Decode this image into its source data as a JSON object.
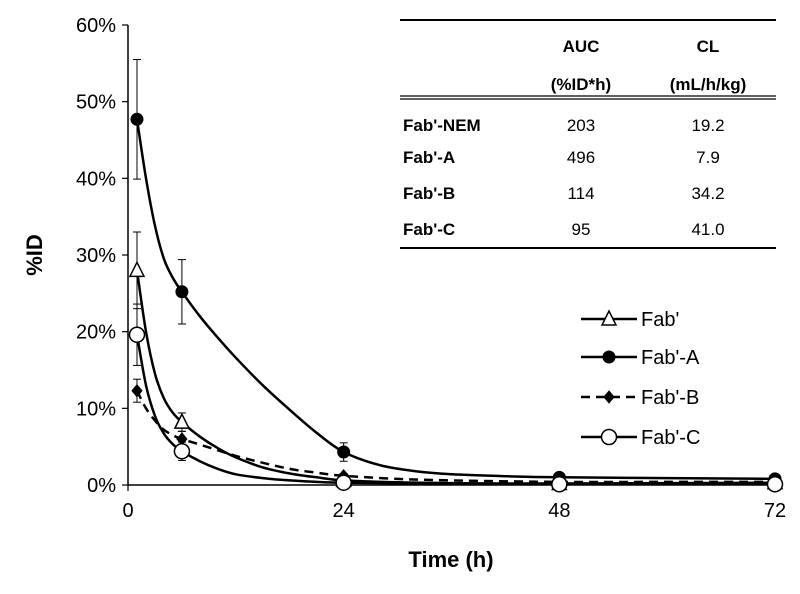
{
  "chart_data": {
    "type": "line",
    "xlabel": "Time (h)",
    "ylabel": "%ID",
    "xlim": [
      0,
      72
    ],
    "ylim": [
      0,
      60
    ],
    "x_ticks": [
      "0",
      "24",
      "48",
      "72"
    ],
    "x_tick_values": [
      0,
      24,
      48,
      72
    ],
    "y_ticks": [
      "0%",
      "10%",
      "20%",
      "30%",
      "40%",
      "50%",
      "60%"
    ],
    "y_tick_values": [
      0,
      10,
      20,
      30,
      40,
      50,
      60
    ],
    "grid": false,
    "legend_position": "right",
    "series": [
      {
        "name": "Fab'",
        "marker": "open-triangle",
        "line_style": "solid",
        "x": [
          1,
          6,
          24,
          48,
          72
        ],
        "y": [
          28.0,
          8.2,
          0.6,
          0.2,
          0.3
        ],
        "error": [
          5.0,
          1.2,
          0.5,
          0.2,
          0.2
        ],
        "curve": [
          [
            1,
            28.0
          ],
          [
            2,
            20.0
          ],
          [
            3,
            14.5
          ],
          [
            4,
            11.3
          ],
          [
            5,
            9.4
          ],
          [
            6,
            8.2
          ],
          [
            8,
            6.3
          ],
          [
            10,
            4.8
          ],
          [
            12,
            3.6
          ],
          [
            15,
            2.3
          ],
          [
            18,
            1.5
          ],
          [
            21,
            1.0
          ],
          [
            24,
            0.6
          ],
          [
            30,
            0.35
          ],
          [
            36,
            0.25
          ],
          [
            42,
            0.2
          ],
          [
            48,
            0.2
          ],
          [
            60,
            0.25
          ],
          [
            72,
            0.3
          ]
        ]
      },
      {
        "name": "Fab'-A",
        "marker": "filled-circle",
        "line_style": "solid",
        "x": [
          1,
          6,
          24,
          48,
          72
        ],
        "y": [
          47.7,
          25.2,
          4.3,
          1.0,
          0.8
        ],
        "error": [
          7.8,
          4.2,
          1.2,
          0.3,
          0.3
        ],
        "curve": [
          [
            1,
            47.7
          ],
          [
            2,
            40.0
          ],
          [
            3,
            33.8
          ],
          [
            4,
            29.5
          ],
          [
            5,
            27.0
          ],
          [
            6,
            25.2
          ],
          [
            8,
            22.0
          ],
          [
            10,
            19.2
          ],
          [
            12,
            16.6
          ],
          [
            15,
            13.0
          ],
          [
            18,
            9.8
          ],
          [
            21,
            6.8
          ],
          [
            24,
            4.3
          ],
          [
            28,
            2.6
          ],
          [
            32,
            1.8
          ],
          [
            36,
            1.4
          ],
          [
            42,
            1.15
          ],
          [
            48,
            1.0
          ],
          [
            60,
            0.9
          ],
          [
            72,
            0.8
          ]
        ]
      },
      {
        "name": "Fab'-B",
        "marker": "filled-diamond",
        "line_style": "dashed",
        "x": [
          1,
          6,
          24,
          48,
          72
        ],
        "y": [
          12.3,
          6.0,
          1.2,
          0.4,
          0.4
        ],
        "error": [
          1.5,
          1.0,
          0.3,
          0.2,
          0.2
        ],
        "curve": [
          [
            1,
            12.3
          ],
          [
            2,
            10.0
          ],
          [
            3,
            8.4
          ],
          [
            4,
            7.2
          ],
          [
            5,
            6.5
          ],
          [
            6,
            6.0
          ],
          [
            9,
            4.9
          ],
          [
            12,
            3.8
          ],
          [
            15,
            2.9
          ],
          [
            18,
            2.1
          ],
          [
            21,
            1.6
          ],
          [
            24,
            1.2
          ],
          [
            30,
            0.8
          ],
          [
            36,
            0.6
          ],
          [
            48,
            0.4
          ],
          [
            60,
            0.4
          ],
          [
            72,
            0.4
          ]
        ]
      },
      {
        "name": "Fab'-C",
        "marker": "open-circle",
        "line_style": "solid",
        "x": [
          1,
          6,
          24,
          48,
          72
        ],
        "y": [
          19.6,
          4.4,
          0.3,
          0.1,
          0.1
        ],
        "error": [
          4.0,
          1.2,
          0.3,
          0.1,
          0.1
        ],
        "curve": [
          [
            1,
            19.6
          ],
          [
            2,
            13.0
          ],
          [
            3,
            9.0
          ],
          [
            4,
            6.7
          ],
          [
            5,
            5.3
          ],
          [
            6,
            4.4
          ],
          [
            8,
            3.1
          ],
          [
            10,
            2.1
          ],
          [
            12,
            1.4
          ],
          [
            15,
            0.9
          ],
          [
            18,
            0.6
          ],
          [
            21,
            0.4
          ],
          [
            24,
            0.3
          ],
          [
            36,
            0.15
          ],
          [
            48,
            0.1
          ],
          [
            72,
            0.1
          ]
        ]
      }
    ]
  },
  "table": {
    "headers": [
      "",
      "AUC",
      "CL"
    ],
    "units": [
      "",
      "(%ID*h)",
      "(mL/h/kg)"
    ],
    "rows": [
      {
        "name": "Fab'-NEM",
        "auc": "203",
        "cl": "19.2"
      },
      {
        "name": "Fab'-A",
        "auc": "496",
        "cl": "7.9"
      },
      {
        "name": "Fab'-B",
        "auc": "114",
        "cl": "34.2"
      },
      {
        "name": "Fab'-C",
        "auc": "95",
        "cl": "41.0"
      }
    ]
  }
}
